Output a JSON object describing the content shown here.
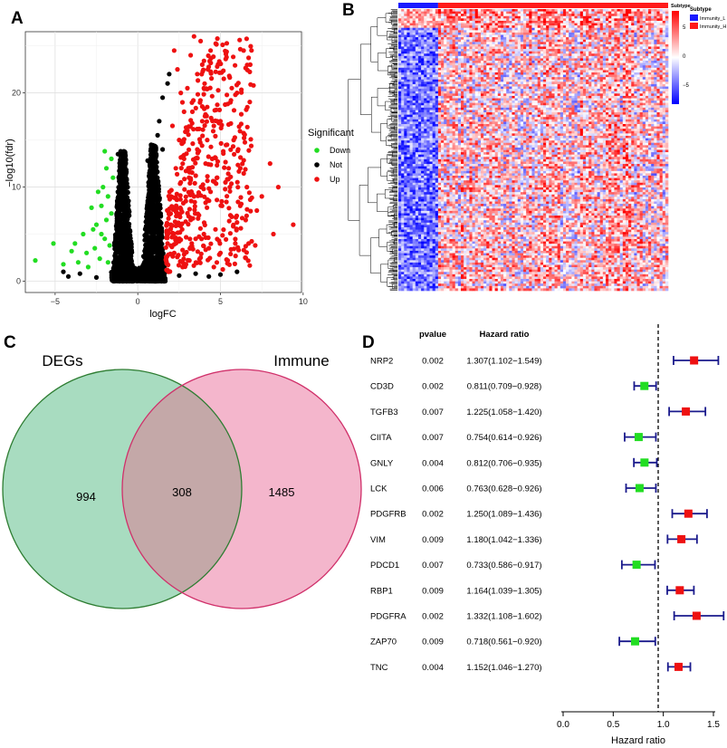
{
  "panel_labels": {
    "a": "A",
    "b": "B",
    "c": "C",
    "d": "D"
  },
  "colors": {
    "down": "#22dd22",
    "not": "#000000",
    "up": "#ee1111",
    "venn_left_fill": "#a8dcc0",
    "venn_left_stroke": "#2e7d32",
    "venn_right_fill": "#f4b6cc",
    "venn_right_stroke": "#d0306a",
    "venn_overlap_fill": "#c4a8a8",
    "forest_line": "#1a1a8c",
    "immunity_l": "#1a1aff",
    "immunity_h": "#ff1a1a"
  },
  "chart_data": [
    {
      "type": "scatter",
      "title": "",
      "xlabel": "logFC",
      "ylabel": "−log10(fdr)",
      "xlim": [
        -6.8,
        9.9
      ],
      "ylim": [
        -1.2,
        26.5
      ],
      "x_ticks": [
        -5,
        0,
        5,
        10
      ],
      "y_ticks": [
        0,
        10,
        20
      ],
      "x_tick_labels": [
        "−5",
        "0",
        "5",
        "10"
      ],
      "y_tick_labels": [
        "0",
        "10",
        "20"
      ],
      "grid": true,
      "legend": {
        "title": "Significant",
        "entries": [
          "Down",
          "Not",
          "Up"
        ],
        "placement": "right"
      },
      "series": [
        {
          "name": "Down",
          "color": "#22dd22",
          "points": [
            [
              -6.2,
              2.2
            ],
            [
              -5.1,
              4.0
            ],
            [
              -4.5,
              1.8
            ],
            [
              -4.0,
              3.2
            ],
            [
              -3.6,
              2.0
            ],
            [
              -3.3,
              5.0
            ],
            [
              -3.0,
              1.5
            ],
            [
              -2.8,
              7.8
            ],
            [
              -2.6,
              3.5
            ],
            [
              -2.5,
              6.0
            ],
            [
              -2.3,
              2.4
            ],
            [
              -2.2,
              8.0
            ],
            [
              -2.1,
              10.0
            ],
            [
              -2.0,
              4.5
            ],
            [
              -2.0,
              13.8
            ],
            [
              -1.9,
              12.0
            ],
            [
              -1.9,
              6.5
            ],
            [
              -1.8,
              9.0
            ],
            [
              -1.8,
              2.0
            ],
            [
              -1.7,
              3.8
            ],
            [
              -1.6,
              7.2
            ],
            [
              -1.5,
              11.0
            ],
            [
              -2.4,
              9.5
            ],
            [
              -2.7,
              5.5
            ],
            [
              -3.1,
              3.0
            ],
            [
              -1.6,
              13.0
            ],
            [
              -2.2,
              5.0
            ],
            [
              -3.8,
              4.0
            ]
          ]
        },
        {
          "name": "Not",
          "color": "#000000",
          "points": [
            [
              -4.2,
              0.5
            ],
            [
              -3.5,
              0.8
            ],
            [
              -2.5,
              0.4
            ],
            [
              -4.5,
              1.0
            ],
            [
              -1.2,
              13.5
            ],
            [
              -1.0,
              12.0
            ],
            [
              1.0,
              12.5
            ],
            [
              0.6,
              12.8
            ],
            [
              0.7,
              11.5
            ],
            [
              1.8,
              21.0
            ],
            [
              1.5,
              19.5
            ],
            [
              1.3,
              17.0
            ],
            [
              1.2,
              15.5
            ],
            [
              1.5,
              14.0
            ],
            [
              1.9,
              22.0
            ],
            [
              2.5,
              0.6
            ],
            [
              3.5,
              0.8
            ],
            [
              4.3,
              0.5
            ],
            [
              5.0,
              0.7
            ],
            [
              6.0,
              1.0
            ],
            [
              -0.3,
              0.3
            ],
            [
              0.4,
              0.2
            ],
            [
              -0.8,
              1.5
            ],
            [
              0.8,
              1.2
            ]
          ]
        },
        {
          "name": "Up",
          "color": "#ee1111",
          "points": [
            [
              2.2,
              24.5
            ],
            [
              2.4,
              22.5
            ],
            [
              2.6,
              20.0
            ],
            [
              2.8,
              18.0
            ],
            [
              3.0,
              16.0
            ],
            [
              3.2,
              24.0
            ],
            [
              3.4,
              26.0
            ],
            [
              3.6,
              22.0
            ],
            [
              3.8,
              25.5
            ],
            [
              4.0,
              20.5
            ],
            [
              4.2,
              18.5
            ],
            [
              4.4,
              24.5
            ],
            [
              4.6,
              16.5
            ],
            [
              4.8,
              22.8
            ],
            [
              5.0,
              17.0
            ],
            [
              5.2,
              21.5
            ],
            [
              5.4,
              14.5
            ],
            [
              5.6,
              19.0
            ],
            [
              5.8,
              15.0
            ],
            [
              6.0,
              20.0
            ],
            [
              6.2,
              12.0
            ],
            [
              6.4,
              24.5
            ],
            [
              6.6,
              10.0
            ],
            [
              6.8,
              23.0
            ],
            [
              7.0,
              20.8
            ],
            [
              7.2,
              7.5
            ],
            [
              7.5,
              9.0
            ],
            [
              8.0,
              12.5
            ],
            [
              8.2,
              5.0
            ],
            [
              8.5,
              10.0
            ],
            [
              9.4,
              6.0
            ],
            [
              2.3,
              12.0
            ],
            [
              2.6,
              10.5
            ],
            [
              2.9,
              8.5
            ],
            [
              3.2,
              6.5
            ],
            [
              3.5,
              4.5
            ],
            [
              3.8,
              2.5
            ],
            [
              4.1,
              12.5
            ],
            [
              4.4,
              9.5
            ],
            [
              4.7,
              5.5
            ],
            [
              5.0,
              3.0
            ],
            [
              5.3,
              10.5
            ],
            [
              5.6,
              7.0
            ],
            [
              5.9,
              4.0
            ],
            [
              6.2,
              8.0
            ],
            [
              6.5,
              2.5
            ],
            [
              2.5,
              15.0
            ],
            [
              2.8,
              13.0
            ],
            [
              3.1,
              11.0
            ],
            [
              3.4,
              9.0
            ],
            [
              3.7,
              7.0
            ],
            [
              4.0,
              5.0
            ],
            [
              4.3,
              3.5
            ],
            [
              4.6,
              1.5
            ],
            [
              2.0,
              6.0
            ],
            [
              2.2,
              3.0
            ],
            [
              2.0,
              9.0
            ],
            [
              1.8,
              4.0
            ],
            [
              3.0,
              20.5
            ],
            [
              3.3,
              18.0
            ],
            [
              3.6,
              14.0
            ],
            [
              3.9,
              17.0
            ],
            [
              4.2,
              15.0
            ],
            [
              4.5,
              13.0
            ],
            [
              4.8,
              11.0
            ],
            [
              5.1,
              8.0
            ],
            [
              5.5,
              12.0
            ],
            [
              2.1,
              16.5
            ],
            [
              2.7,
              19.0
            ],
            [
              3.9,
              23.0
            ],
            [
              6.7,
              4.0
            ],
            [
              7.1,
              3.8
            ]
          ]
        }
      ],
      "not_cluster": [
        {
          "center_x": -0.9,
          "peak_y": 13.8,
          "halfwidth": 0.55
        },
        {
          "center_x": 0.95,
          "peak_y": 14.5,
          "halfwidth": 0.6
        }
      ]
    },
    {
      "type": "heatmap",
      "title": "",
      "n_rows": 120,
      "n_cols": 95,
      "split_fraction": 0.15,
      "color_scale": {
        "low": -5,
        "mid": 0,
        "high": 5,
        "tick_labels": [
          "5",
          "0",
          "−5"
        ]
      },
      "annotation": {
        "title": "Subtype",
        "legend_title": "Subtype",
        "groups": [
          "Immunity_L",
          "Immunity_H"
        ]
      },
      "seed": 17
    },
    {
      "type": "venn",
      "sets": [
        {
          "name": "DEGs",
          "only": 994
        },
        {
          "name": "Immune",
          "only": 1485
        }
      ],
      "intersection": 308
    },
    {
      "type": "forest",
      "xlabel": "Hazard ratio",
      "xlim": [
        0.0,
        1.55
      ],
      "x_ticks": [
        0.0,
        0.5,
        1.0,
        1.5
      ],
      "x_tick_labels": [
        "0.0",
        "0.5",
        "1.0",
        "1.5"
      ],
      "reference_line": 1.0,
      "columns": {
        "pvalue": "pvalue",
        "hr": "Hazard ratio"
      },
      "rows": [
        {
          "gene": "NRP2",
          "pvalue": "0.002",
          "hr_text": "1.307(1.102−1.549)",
          "hr": 1.307,
          "lo": 1.102,
          "hi": 1.549
        },
        {
          "gene": "CD3D",
          "pvalue": "0.002",
          "hr_text": "0.811(0.709−0.928)",
          "hr": 0.811,
          "lo": 0.709,
          "hi": 0.928
        },
        {
          "gene": "TGFB3",
          "pvalue": "0.007",
          "hr_text": "1.225(1.058−1.420)",
          "hr": 1.225,
          "lo": 1.058,
          "hi": 1.42
        },
        {
          "gene": "CIITA",
          "pvalue": "0.007",
          "hr_text": "0.754(0.614−0.926)",
          "hr": 0.754,
          "lo": 0.614,
          "hi": 0.926
        },
        {
          "gene": "GNLY",
          "pvalue": "0.004",
          "hr_text": "0.812(0.706−0.935)",
          "hr": 0.812,
          "lo": 0.706,
          "hi": 0.935
        },
        {
          "gene": "LCK",
          "pvalue": "0.006",
          "hr_text": "0.763(0.628−0.926)",
          "hr": 0.763,
          "lo": 0.628,
          "hi": 0.926
        },
        {
          "gene": "PDGFRB",
          "pvalue": "0.002",
          "hr_text": "1.250(1.089−1.436)",
          "hr": 1.25,
          "lo": 1.089,
          "hi": 1.436
        },
        {
          "gene": "VIM",
          "pvalue": "0.009",
          "hr_text": "1.180(1.042−1.336)",
          "hr": 1.18,
          "lo": 1.042,
          "hi": 1.336
        },
        {
          "gene": "PDCD1",
          "pvalue": "0.007",
          "hr_text": "0.733(0.586−0.917)",
          "hr": 0.733,
          "lo": 0.586,
          "hi": 0.917
        },
        {
          "gene": "RBP1",
          "pvalue": "0.009",
          "hr_text": "1.164(1.039−1.305)",
          "hr": 1.164,
          "lo": 1.039,
          "hi": 1.305
        },
        {
          "gene": "PDGFRA",
          "pvalue": "0.002",
          "hr_text": "1.332(1.108−1.602)",
          "hr": 1.332,
          "lo": 1.108,
          "hi": 1.602
        },
        {
          "gene": "ZAP70",
          "pvalue": "0.009",
          "hr_text": "0.718(0.561−0.920)",
          "hr": 0.718,
          "lo": 0.561,
          "hi": 0.92
        },
        {
          "gene": "TNC",
          "pvalue": "0.004",
          "hr_text": "1.152(1.046−1.270)",
          "hr": 1.152,
          "lo": 1.046,
          "hi": 1.27
        }
      ]
    }
  ]
}
